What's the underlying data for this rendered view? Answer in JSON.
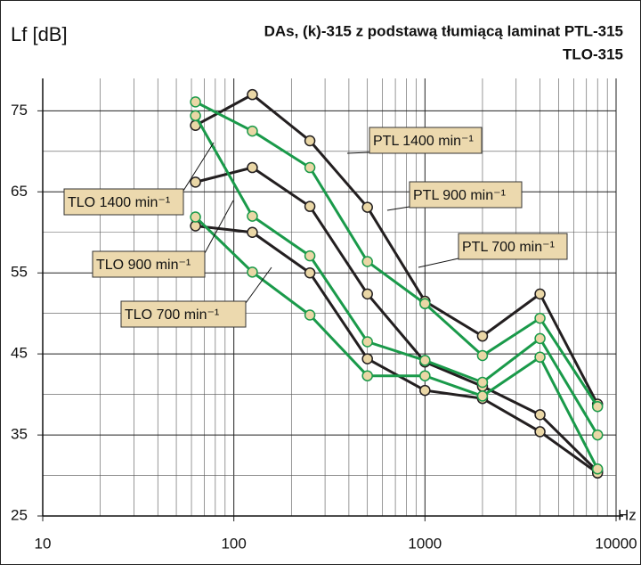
{
  "chart_data": {
    "type": "line",
    "title": "DAs, (k)-315 z podstawą tłumiącą laminat PTL-315",
    "subtitle": "TLO-315",
    "y_label": "Lf [dB]",
    "x_label": "Hz",
    "x": [
      63,
      125,
      250,
      500,
      1000,
      2000,
      4000,
      8000
    ],
    "log_x": true,
    "xlim": [
      10,
      10000
    ],
    "xticks": [
      10,
      100,
      1000,
      10000
    ],
    "ylim": [
      25,
      79
    ],
    "yticks": [
      25,
      35,
      45,
      55,
      65,
      75
    ],
    "yminor_ticks": [
      30,
      40,
      50,
      60,
      70
    ],
    "grid": true,
    "series": [
      {
        "name": "PTL 1400 min⁻¹",
        "color": "#231f20",
        "values": [
          73.2,
          77,
          71.3,
          63.1,
          51.5,
          47.2,
          52.4,
          38.8
        ]
      },
      {
        "name": "PTL 900 min⁻¹",
        "color": "#231f20",
        "values": [
          66.2,
          68,
          63.2,
          52.4,
          44,
          41,
          37.5,
          30.5
        ]
      },
      {
        "name": "PTL 700 min⁻¹",
        "color": "#231f20",
        "values": [
          60.8,
          60,
          55,
          44.4,
          40.5,
          39.5,
          35.4,
          30.3
        ]
      },
      {
        "name": "TLO 1400 min⁻¹",
        "color": "#1a9a4a",
        "values": [
          76.1,
          72.5,
          68,
          56.4,
          51.2,
          44.8,
          49.4,
          38.5
        ]
      },
      {
        "name": "TLO 900 min⁻¹",
        "color": "#1a9a4a",
        "values": [
          74.4,
          62,
          57.1,
          46.5,
          44.2,
          41.5,
          46.9,
          35
        ]
      },
      {
        "name": "TLO 700 min⁻¹",
        "color": "#1a9a4a",
        "values": [
          61.9,
          55.1,
          49.8,
          42.3,
          42.3,
          39.8,
          44.6,
          30.8
        ]
      }
    ]
  }
}
